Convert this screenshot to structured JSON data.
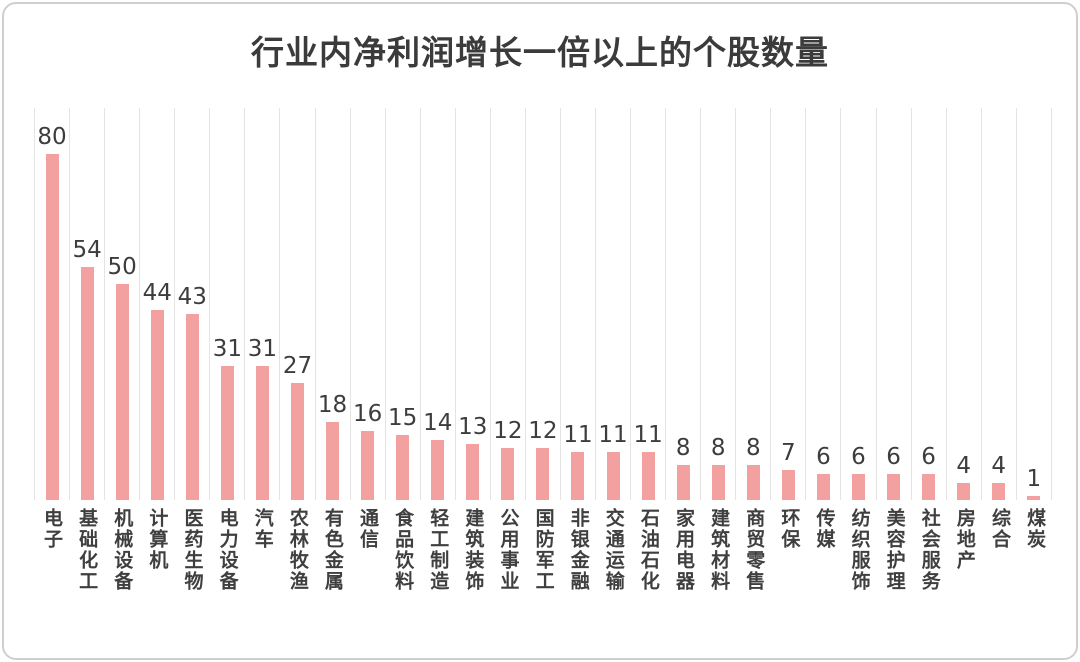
{
  "title": "行业内净利润增长一倍以上的个股数量",
  "chart_data": {
    "type": "bar",
    "title": "行业内净利润增长一倍以上的个股数量",
    "categories": [
      "电子",
      "基础化工",
      "机械设备",
      "计算机",
      "医药生物",
      "电力设备",
      "汽车",
      "农林牧渔",
      "有色金属",
      "通信",
      "食品饮料",
      "轻工制造",
      "建筑装饰",
      "公用事业",
      "国防军工",
      "非银金融",
      "交通运输",
      "石油石化",
      "家用电器",
      "建筑材料",
      "商贸零售",
      "环保",
      "传媒",
      "纺织服饰",
      "美容护理",
      "社会服务",
      "房地产",
      "综合",
      "煤炭"
    ],
    "values": [
      80,
      54,
      50,
      44,
      43,
      31,
      31,
      27,
      18,
      16,
      15,
      14,
      13,
      12,
      12,
      11,
      11,
      11,
      8,
      8,
      8,
      7,
      6,
      6,
      6,
      6,
      4,
      4,
      1
    ],
    "xlabel": "",
    "ylabel": "",
    "ylim": [
      0,
      85
    ],
    "grid": "vertical-category-separators",
    "legend_position": "none",
    "data_labels": true,
    "bar_color": "#F2A0A0",
    "value_label_color": "#3D3D3D",
    "category_label_color": "#3F3F3F",
    "gridline_color": "#E4E4E4",
    "title_color": "#3B3B3B"
  }
}
